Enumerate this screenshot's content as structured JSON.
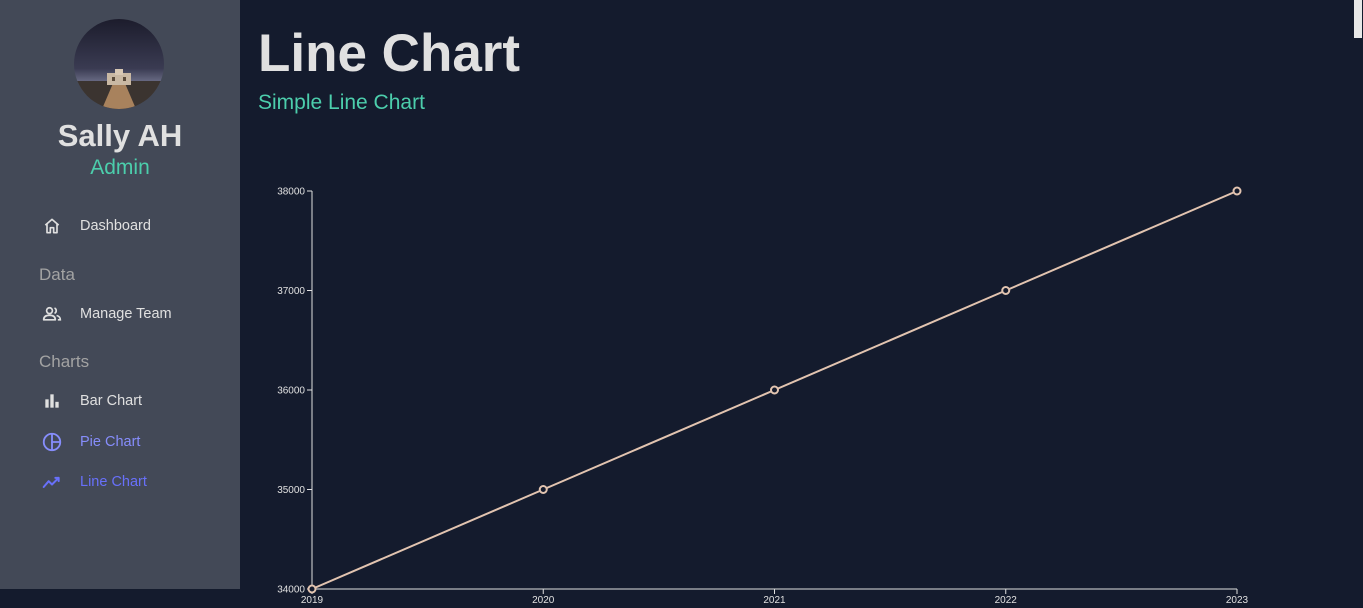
{
  "profile": {
    "name": "Sally AH",
    "role": "Admin"
  },
  "sidebar": {
    "items": [
      {
        "label": "Dashboard",
        "icon": "home-icon"
      },
      {
        "section": "Data"
      },
      {
        "label": "Manage Team",
        "icon": "people-icon"
      },
      {
        "section": "Charts"
      },
      {
        "label": "Bar Chart",
        "icon": "bar-chart-icon"
      },
      {
        "label": "Pie Chart",
        "icon": "pie-chart-icon"
      },
      {
        "label": "Line Chart",
        "icon": "line-chart-icon"
      }
    ]
  },
  "header": {
    "title": "Line Chart",
    "subtitle": "Simple Line Chart"
  },
  "colors": {
    "accent_green": "#4cceac",
    "active_purple": "#6870fa",
    "line": "#e2c4b0"
  },
  "chart_data": {
    "type": "line",
    "x": [
      "2019",
      "2020",
      "2021",
      "2022",
      "2023"
    ],
    "series": [
      {
        "values": [
          34000,
          35000,
          36000,
          37000,
          38000
        ]
      }
    ],
    "y_ticks": [
      "34000",
      "35000",
      "36000",
      "37000",
      "38000"
    ],
    "ylim": [
      34000,
      38000
    ],
    "grid": false
  }
}
